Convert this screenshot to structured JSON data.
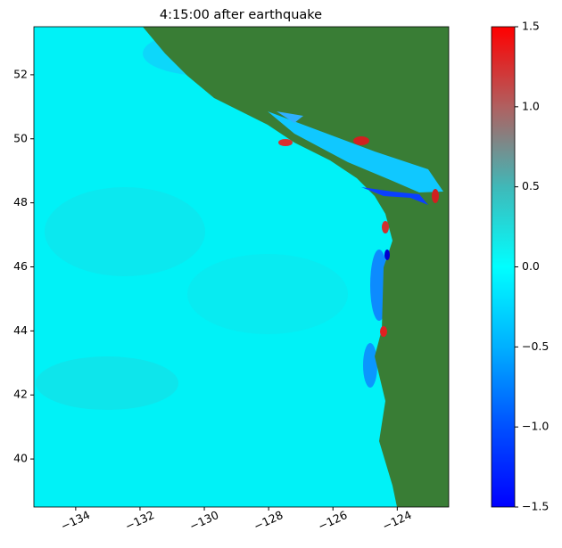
{
  "chart_data": {
    "type": "map",
    "title": "4:15:00 after earthquake",
    "xlim": [
      -135.3,
      -122.4
    ],
    "ylim": [
      38.5,
      53.5
    ],
    "xticks": [
      {
        "value": -134,
        "label": "−134"
      },
      {
        "value": -132,
        "label": "−132"
      },
      {
        "value": -130,
        "label": "−130"
      },
      {
        "value": -128,
        "label": "−128"
      },
      {
        "value": -126,
        "label": "−126"
      },
      {
        "value": -124,
        "label": "−124"
      }
    ],
    "yticks": [
      40,
      42,
      44,
      46,
      48,
      50,
      52
    ],
    "colorbar": {
      "lim": [
        -1.5,
        1.5
      ],
      "ticks": [
        {
          "value": -1.5,
          "label": "−1.5"
        },
        {
          "value": -1,
          "label": "−1.0"
        },
        {
          "value": -0.5,
          "label": "−0.5"
        },
        {
          "value": 0,
          "label": "0.0"
        },
        0.5,
        {
          "value": 1,
          "label": "1.0"
        },
        1.5
      ],
      "colormap": [
        "#0000ff",
        "#0050ff",
        "#00b0ff",
        "#00ffff",
        "#40b8b8",
        "#b06060",
        "#ff0000"
      ]
    },
    "land_color": "#397d35",
    "ocean_color": "#00f2f7"
  }
}
